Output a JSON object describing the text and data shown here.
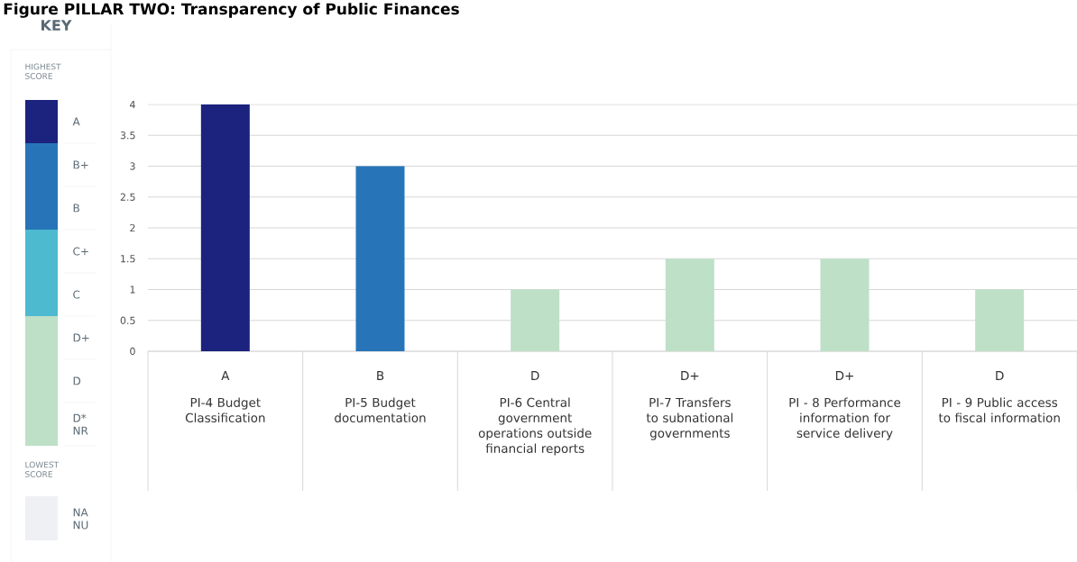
{
  "chart_data": {
    "type": "bar",
    "title": "Figure PILLAR TWO: Transparency of Public Finances",
    "categories": [
      "PI-4 Budget Classification",
      "PI-5 Budget documentation",
      "PI-6 Central government operations outside financial reports",
      "PI-7 Transfers to subnational governments",
      "PI - 8 Performance information for service delivery",
      "PI - 9 Public access to fiscal information"
    ],
    "values": [
      4,
      3,
      1,
      1.5,
      1.5,
      1
    ],
    "colors": [
      "#1b237e",
      "#2775b8",
      "#bde0c6",
      "#bde0c6",
      "#bde0c6",
      "#bde0c6"
    ],
    "value_labels": [
      "A",
      "B",
      "D",
      "D+",
      "D+",
      "D"
    ],
    "ylim": [
      0,
      4
    ],
    "yticks": [
      0,
      0.5,
      1,
      1.5,
      2,
      2.5,
      3,
      3.5,
      4
    ],
    "grid": "y",
    "annotations": [
      "KEY",
      "HIGHEST SCORE",
      "A",
      "B+",
      "B",
      "C+",
      "C",
      "D+",
      "D",
      "D*",
      "NR",
      "LOWEST SCORE",
      "NA",
      "NU"
    ]
  }
}
